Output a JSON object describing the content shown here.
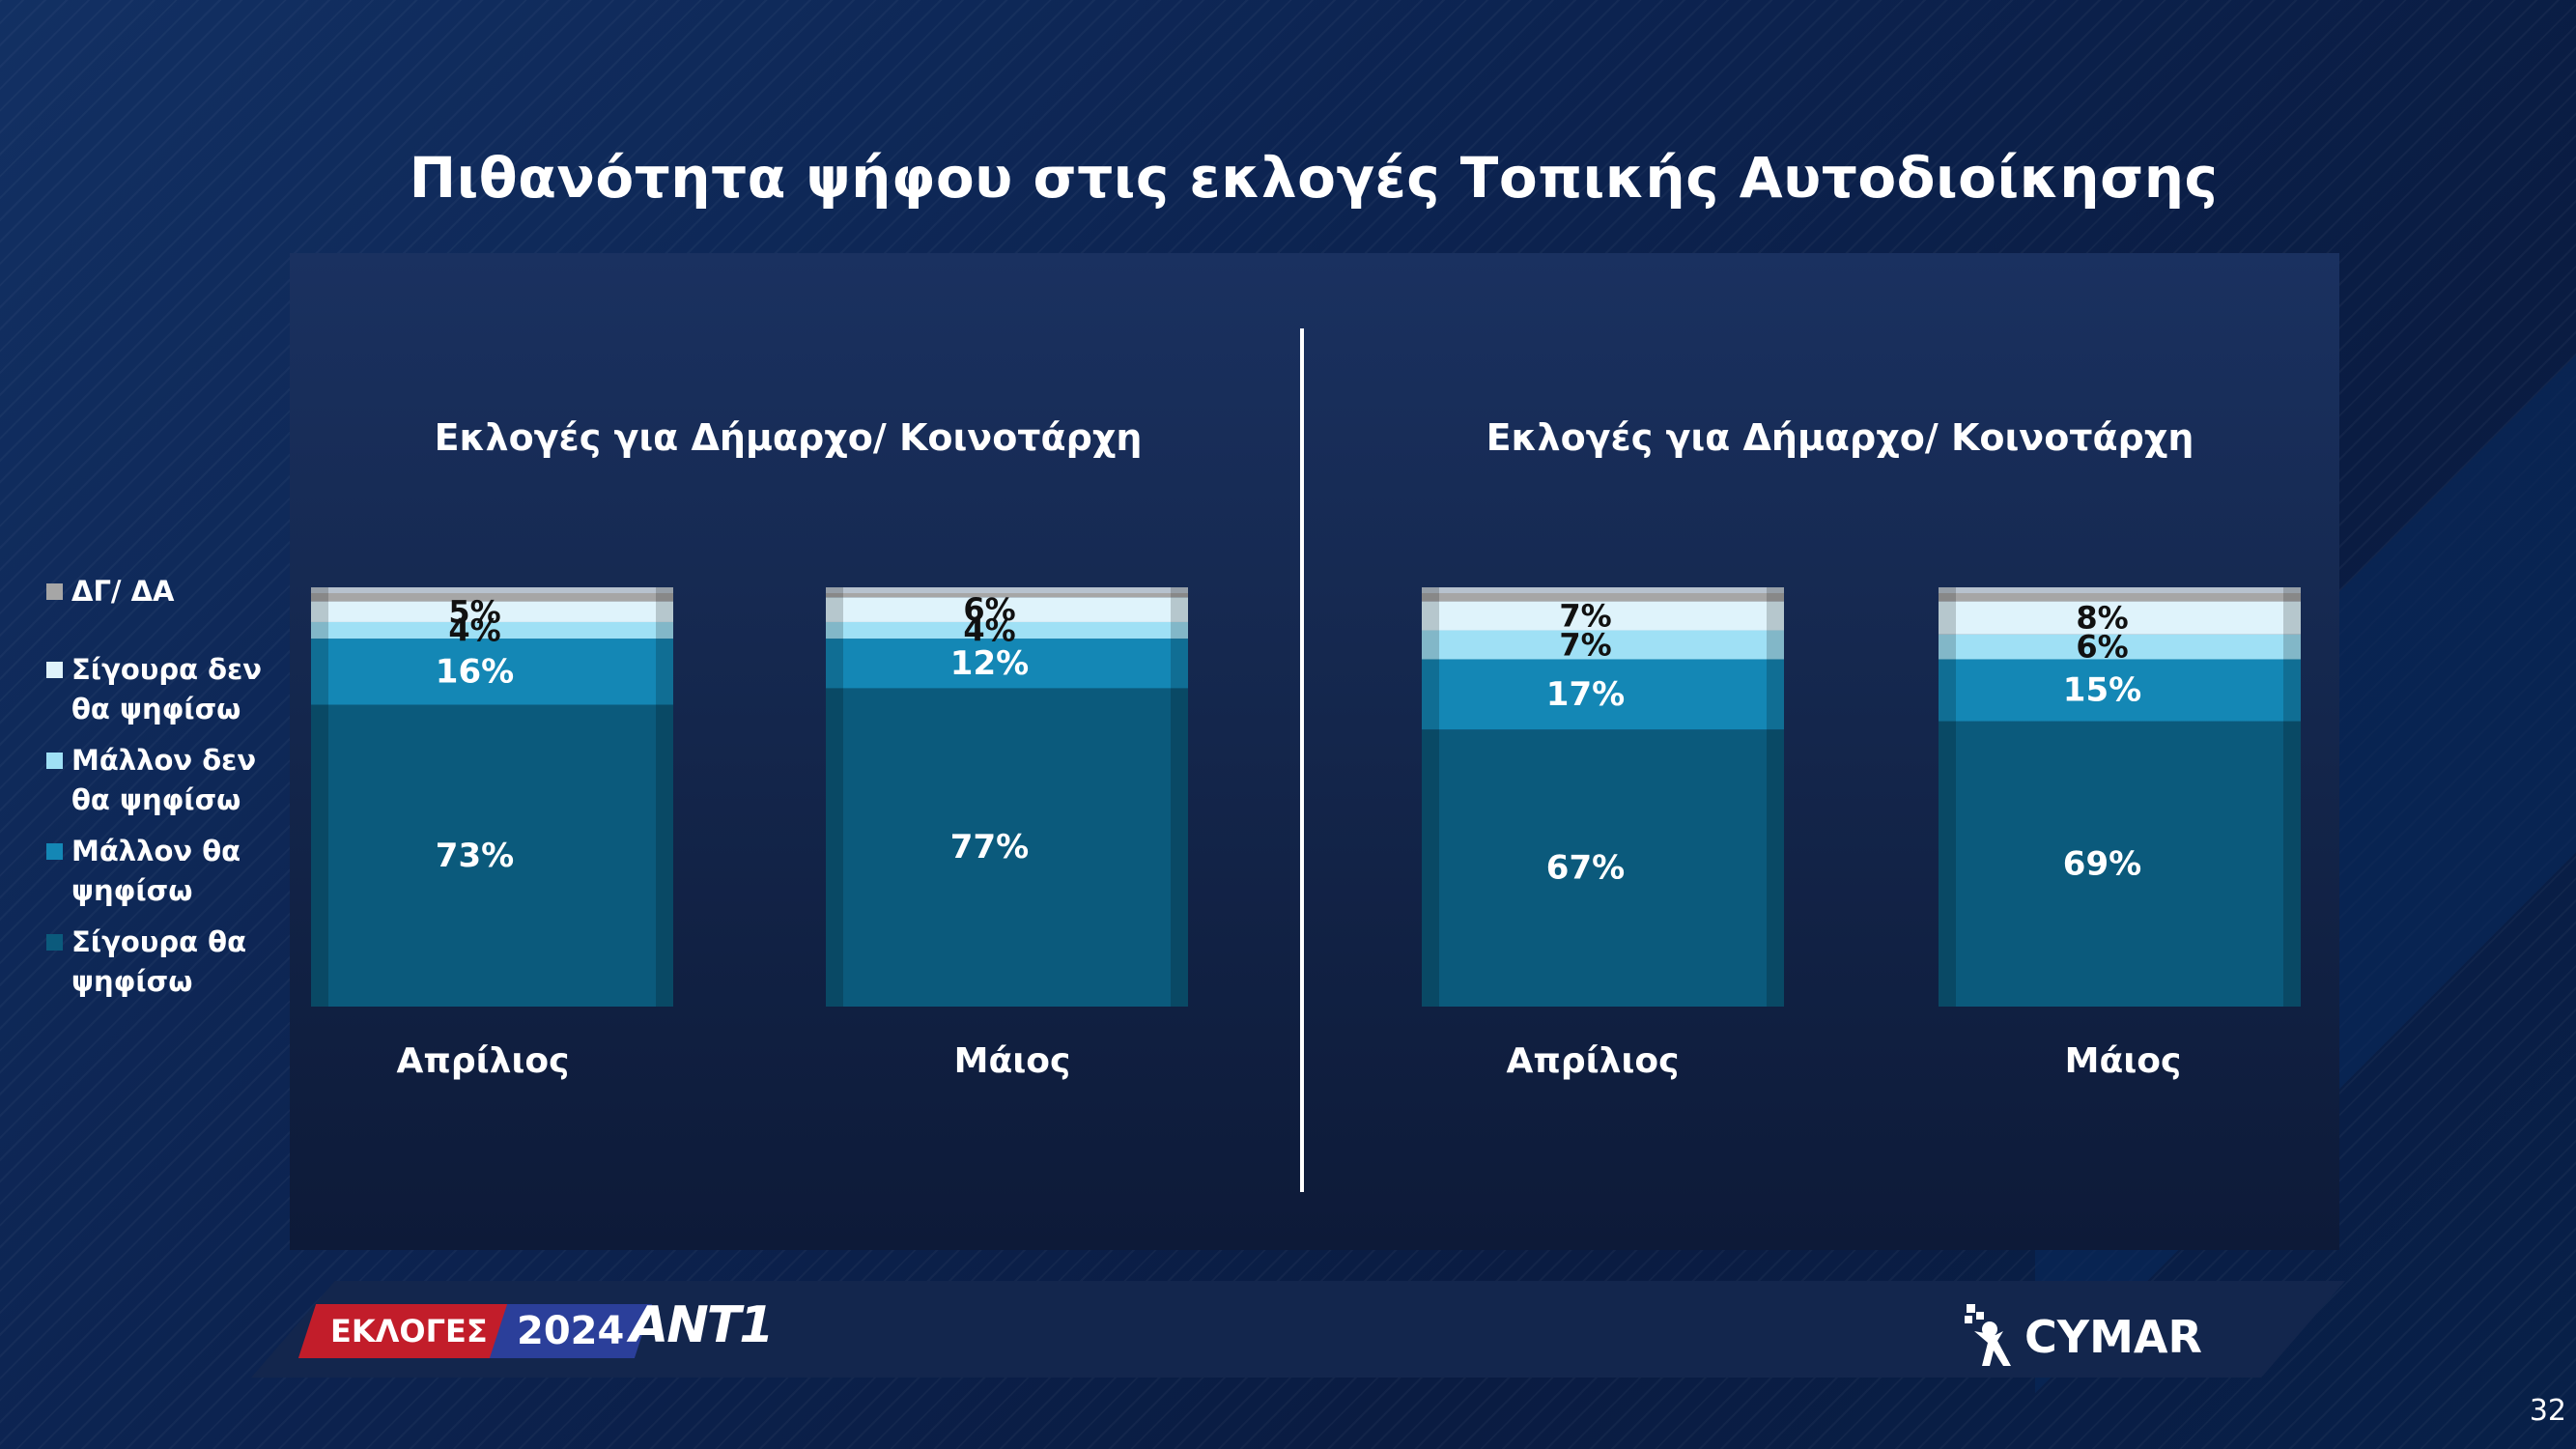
{
  "title": "Πιθανότητα ψήφου στις εκλογές Τοπικής Αυτοδιοίκησης",
  "legend": [
    {
      "label": "ΔΓ/ ΔΑ",
      "color": "#a6a6a6"
    },
    {
      "label": "Σίγουρα δεν θα ψηφίσω",
      "color": "#dff3fb"
    },
    {
      "label": "Μάλλον δεν θα ψηφίσω",
      "color": "#9fe0f5"
    },
    {
      "label": "Μάλλον θα ψηφίσω",
      "color": "#1487b5"
    },
    {
      "label": "Σίγουρα θα ψηφίσω",
      "color": "#0b5a7c"
    }
  ],
  "chart_data": [
    {
      "type": "bar",
      "stacked": true,
      "title": "Εκλογές για Δήμαρχο/ Κοινοτάρχη",
      "categories": [
        "Απρίλιος",
        "Μάιος"
      ],
      "series": [
        {
          "name": "Σίγουρα θα ψηφίσω",
          "values": [
            73,
            77
          ]
        },
        {
          "name": "Μάλλον θα ψηφίσω",
          "values": [
            16,
            12
          ]
        },
        {
          "name": "Μάλλον δεν θα ψηφίσω",
          "values": [
            4,
            4
          ]
        },
        {
          "name": "Σίγουρα δεν θα ψηφίσω",
          "values": [
            5,
            6
          ]
        },
        {
          "name": "ΔΓ/ ΔΑ",
          "values": [
            2,
            1
          ]
        }
      ],
      "labels": [
        [
          "73%",
          "16%",
          "4%",
          "5%",
          ""
        ],
        [
          "77%",
          "12%",
          "4%",
          "6%",
          ""
        ]
      ],
      "ylim": [
        0,
        100
      ]
    },
    {
      "type": "bar",
      "stacked": true,
      "title": "Εκλογές για Δήμαρχο/ Κοινοτάρχη",
      "categories": [
        "Απρίλιος",
        "Μάιος"
      ],
      "series": [
        {
          "name": "Σίγουρα θα ψηφίσω",
          "values": [
            67,
            69
          ]
        },
        {
          "name": "Μάλλον θα ψηφίσω",
          "values": [
            17,
            15
          ]
        },
        {
          "name": "Μάλλον δεν θα ψηφίσω",
          "values": [
            7,
            6
          ]
        },
        {
          "name": "Σίγουρα δεν θα ψηφίσω",
          "values": [
            7,
            8
          ]
        },
        {
          "name": "ΔΓ/ ΔΑ",
          "values": [
            2,
            2
          ]
        }
      ],
      "labels": [
        [
          "67%",
          "17%",
          "7%",
          "7%",
          ""
        ],
        [
          "69%",
          "15%",
          "6%",
          "8%",
          ""
        ]
      ],
      "ylim": [
        0,
        100
      ]
    }
  ],
  "footer": {
    "ekloges": "ΕΚΛΟΓΕΣ",
    "year": "2024",
    "channel": "ANT1",
    "pollster": "CYMAR",
    "page": "32"
  }
}
